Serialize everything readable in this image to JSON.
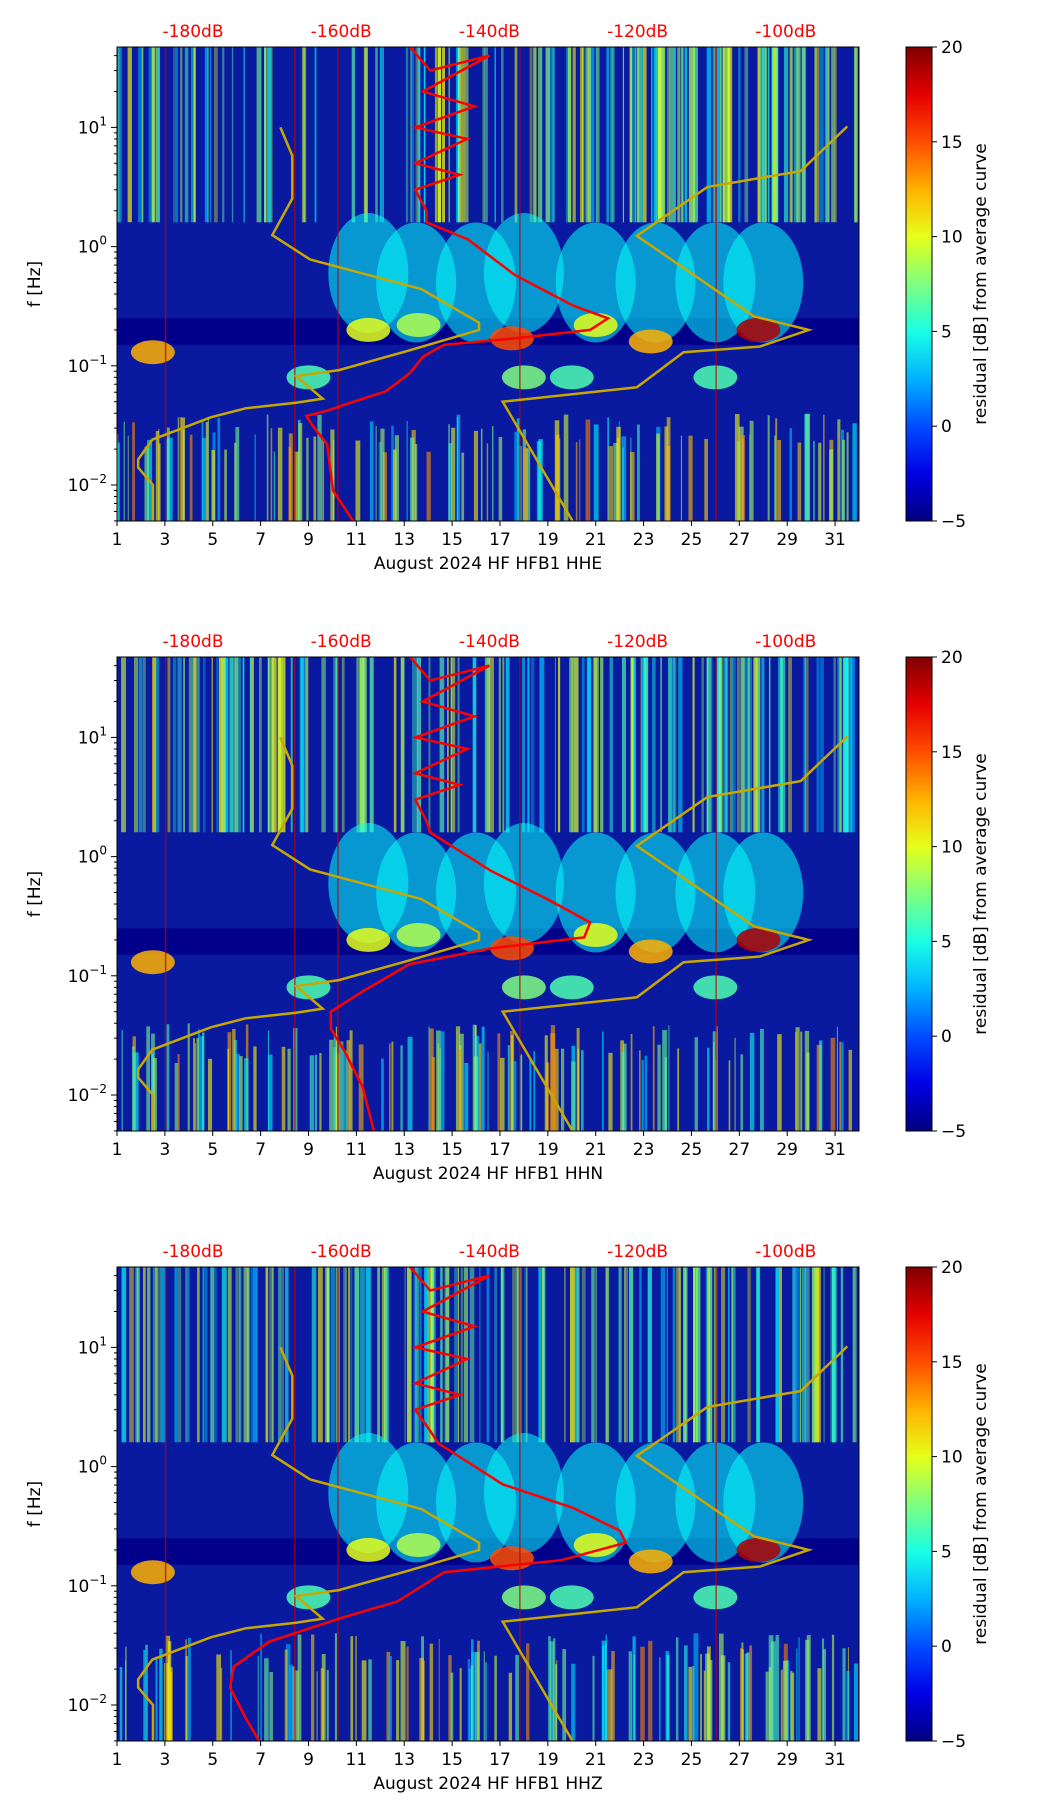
{
  "chart_data": {
    "type": "heatmap",
    "panels": [
      {
        "xlabel": "August 2024 HF HFB1  HHE",
        "red_curve": [
          [
            -190,
            48
          ],
          [
            -150.8,
            48
          ],
          [
            -148,
            30
          ],
          [
            -140,
            40
          ],
          [
            -149,
            20
          ],
          [
            -142,
            15
          ],
          [
            -150,
            10
          ],
          [
            -143,
            8
          ],
          [
            -150,
            5
          ],
          [
            -144,
            4
          ],
          [
            -150,
            3
          ],
          [
            -148.5,
            2
          ],
          [
            -148.5,
            1.6
          ],
          [
            -142.9,
            1.15
          ],
          [
            -136.6,
            0.58
          ],
          [
            -128.7,
            0.32
          ],
          [
            -124,
            0.25
          ],
          [
            -126.4,
            0.2
          ],
          [
            -136.6,
            0.17
          ],
          [
            -146.1,
            0.15
          ],
          [
            -148.9,
            0.12
          ],
          [
            -150.8,
            0.086
          ],
          [
            -154,
            0.061
          ],
          [
            -158.7,
            0.049
          ],
          [
            -161.9,
            0.042
          ],
          [
            -164.7,
            0.038
          ],
          [
            -163.8,
            0.031
          ],
          [
            -161.9,
            0.022
          ],
          [
            -161.1,
            0.009
          ],
          [
            -158.4,
            0.005
          ]
        ]
      },
      {
        "xlabel": "August 2024 HF HFB1  HHN",
        "red_curve": [
          [
            -190,
            48
          ],
          [
            -150.8,
            48
          ],
          [
            -148,
            30
          ],
          [
            -140,
            40
          ],
          [
            -149,
            20
          ],
          [
            -142,
            15
          ],
          [
            -150,
            10
          ],
          [
            -143,
            8
          ],
          [
            -150,
            5
          ],
          [
            -144,
            4
          ],
          [
            -150,
            3
          ],
          [
            -148.5,
            2
          ],
          [
            -148,
            1.6
          ],
          [
            -139.8,
            0.76
          ],
          [
            -131.9,
            0.43
          ],
          [
            -126.4,
            0.28
          ],
          [
            -127.2,
            0.21
          ],
          [
            -139.8,
            0.17
          ],
          [
            -150.8,
            0.125
          ],
          [
            -157.1,
            0.074
          ],
          [
            -161.4,
            0.05
          ],
          [
            -161.4,
            0.036
          ],
          [
            -159.5,
            0.023
          ],
          [
            -157.1,
            0.0117
          ],
          [
            -155.6,
            0.005
          ]
        ]
      },
      {
        "xlabel": "August 2024 HF HFB1  HHZ",
        "red_curve": [
          [
            -190,
            48
          ],
          [
            -150.8,
            48
          ],
          [
            -148,
            30
          ],
          [
            -140,
            40
          ],
          [
            -149,
            20
          ],
          [
            -142,
            15
          ],
          [
            -150,
            10
          ],
          [
            -143,
            8
          ],
          [
            -150,
            5
          ],
          [
            -144,
            4
          ],
          [
            -150,
            3
          ],
          [
            -148,
            2
          ],
          [
            -146.9,
            1.57
          ],
          [
            -138.2,
            0.71
          ],
          [
            -128.7,
            0.45
          ],
          [
            -122.4,
            0.29
          ],
          [
            -121.6,
            0.23
          ],
          [
            -130.3,
            0.164
          ],
          [
            -146.1,
            0.13
          ],
          [
            -152.4,
            0.074
          ],
          [
            -160.3,
            0.053
          ],
          [
            -169.7,
            0.034
          ],
          [
            -174.5,
            0.021
          ],
          [
            -175,
            0.014
          ],
          [
            -172.9,
            0.0078
          ],
          [
            -171,
            0.0049
          ]
        ]
      }
    ],
    "model_low": [
      [
        -168.2,
        10
      ],
      [
        -166.6,
        5.8
      ],
      [
        -166.6,
        2.53
      ],
      [
        -169.3,
        1.25
      ],
      [
        -164.2,
        0.78
      ],
      [
        -149.2,
        0.44
      ],
      [
        -141.4,
        0.23
      ],
      [
        -141.4,
        0.2
      ],
      [
        -151.1,
        0.133
      ],
      [
        -160.3,
        0.092
      ],
      [
        -166.1,
        0.082
      ],
      [
        -162.5,
        0.053
      ],
      [
        -166.1,
        0.049
      ],
      [
        -172.9,
        0.044
      ],
      [
        -177.6,
        0.037
      ],
      [
        -185.5,
        0.024
      ],
      [
        -187.4,
        0.0164
      ],
      [
        -187.4,
        0.014
      ],
      [
        -185.4,
        0.01
      ],
      [
        -185.4,
        0.0049
      ]
    ],
    "model_high": [
      [
        -91.7,
        10.2
      ],
      [
        -98,
        4.3
      ],
      [
        -110.6,
        3.16
      ],
      [
        -120.1,
        1.23
      ],
      [
        -104.3,
        0.26
      ],
      [
        -96.9,
        0.2
      ],
      [
        -103.5,
        0.145
      ],
      [
        -113.8,
        0.13
      ],
      [
        -120.1,
        0.066
      ],
      [
        -138.2,
        0.05
      ],
      [
        -128.7,
        0.0049
      ]
    ],
    "ylabel": "f [Hz]",
    "x_ticks": [
      "1",
      "3",
      "5",
      "7",
      "9",
      "11",
      "13",
      "15",
      "17",
      "19",
      "21",
      "23",
      "25",
      "27",
      "29",
      "31"
    ],
    "x_range": [
      1,
      32
    ],
    "y_range": [
      0.005,
      48
    ],
    "y_scale": "log",
    "y_ticks": [
      {
        "v": 0.01,
        "m": "10",
        "e": "−2"
      },
      {
        "v": 0.1,
        "m": "10",
        "e": "−1"
      },
      {
        "v": 1,
        "m": "10",
        "e": "0"
      },
      {
        "v": 10,
        "m": "10",
        "e": "1"
      }
    ],
    "top_ticks": [
      {
        "v": -180,
        "label": "-180dB"
      },
      {
        "v": -160,
        "label": "-160dB"
      },
      {
        "v": -140,
        "label": "-140dB"
      },
      {
        "v": -120,
        "label": "-120dB"
      },
      {
        "v": -100,
        "label": "-100dB"
      }
    ],
    "colorbar": {
      "label": "residual [dB] from average curve",
      "range": [
        -5,
        20
      ],
      "ticks": [
        "−5",
        "0",
        "5",
        "10",
        "15",
        "20"
      ]
    },
    "colors": {
      "psd_curve": "#ff0000",
      "model_curves": "#c8a800",
      "top_axis": "#ff0000"
    }
  }
}
